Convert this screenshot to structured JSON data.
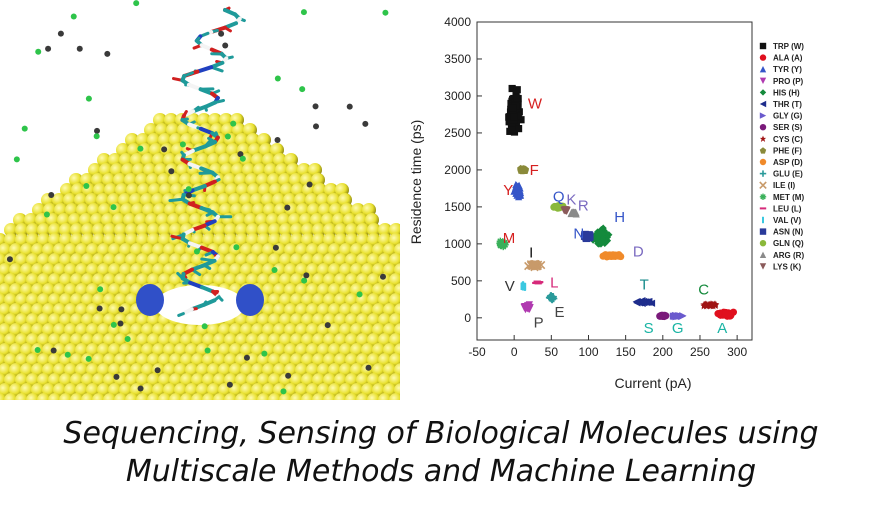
{
  "caption": {
    "line1": "Sequencing, Sensing of Biological Molecules using",
    "line2": "Multiscale Methods and Machine Learning"
  },
  "simulation": {
    "surface_color": "#e8e02e",
    "molecule_color": "#1f9a9a",
    "ion_colors": [
      "#2ec44a",
      "#3a3a3a"
    ],
    "pore_color": "#3050c8"
  },
  "chart_data": {
    "type": "scatter",
    "title": "",
    "xlabel": "Current (pA)",
    "ylabel": "Residence time (ps)",
    "xlim": [
      -50,
      320
    ],
    "ylim": [
      -300,
      4000
    ],
    "xticks": [
      -50,
      0,
      50,
      100,
      150,
      200,
      250,
      300
    ],
    "yticks": [
      0,
      500,
      1000,
      1500,
      2000,
      2500,
      3000,
      3500,
      4000
    ],
    "grid": false,
    "legend_position": "top-right",
    "series": [
      {
        "name": "TRP (W)",
        "label": "W",
        "color": "#111111",
        "marker": "square",
        "cx": 0,
        "cy": 2800,
        "sx": 10,
        "sy": 450,
        "n": 80,
        "lx": 28,
        "ly": 2900,
        "lc": "#d62020"
      },
      {
        "name": "ALA (A)",
        "label": "A",
        "color": "#e0101e",
        "marker": "circle",
        "cx": 285,
        "cy": 50,
        "sx": 12,
        "sy": 40,
        "n": 40,
        "lx": 280,
        "ly": -140,
        "lc": "#19b4a4"
      },
      {
        "name": "TYR (Y)",
        "label": "Y",
        "color": "#3555c8",
        "marker": "triangle",
        "cx": 5,
        "cy": 1730,
        "sx": 6,
        "sy": 130,
        "n": 28,
        "lx": -8,
        "ly": 1730,
        "lc": "#d62020"
      },
      {
        "name": "PRO (P)",
        "label": "P",
        "color": "#b03ab0",
        "marker": "tri-down",
        "cx": 18,
        "cy": 140,
        "sx": 5,
        "sy": 55,
        "n": 25,
        "lx": 33,
        "ly": -60,
        "lc": "#444444"
      },
      {
        "name": "HIS (H)",
        "label": "H",
        "color": "#148a3c",
        "marker": "diamond",
        "cx": 117,
        "cy": 1100,
        "sx": 15,
        "sy": 140,
        "n": 60,
        "lx": 142,
        "ly": 1360,
        "lc": "#3555c8"
      },
      {
        "name": "THR (T)",
        "label": "T",
        "color": "#1e2d8c",
        "marker": "tri-left",
        "cx": 173,
        "cy": 210,
        "sx": 14,
        "sy": 30,
        "n": 30,
        "lx": 175,
        "ly": 450,
        "lc": "#148a8a"
      },
      {
        "name": "GLY (G)",
        "label": "G",
        "color": "#6a5acd",
        "marker": "tri-right",
        "cx": 220,
        "cy": 25,
        "sx": 12,
        "sy": 15,
        "n": 25,
        "lx": 220,
        "ly": -140,
        "lc": "#19b4a4"
      },
      {
        "name": "SER (S)",
        "label": "S",
        "color": "#7a1a7a",
        "marker": "hexagon",
        "cx": 200,
        "cy": 25,
        "sx": 6,
        "sy": 15,
        "n": 15,
        "lx": 181,
        "ly": -140,
        "lc": "#19b4a4"
      },
      {
        "name": "CYS (C)",
        "label": "C",
        "color": "#a01414",
        "marker": "star",
        "cx": 262,
        "cy": 175,
        "sx": 14,
        "sy": 20,
        "n": 35,
        "lx": 255,
        "ly": 380,
        "lc": "#148a3c"
      },
      {
        "name": "PHE (F)",
        "label": "F",
        "color": "#8a8a3a",
        "marker": "pentagon",
        "cx": 12,
        "cy": 2000,
        "sx": 6,
        "sy": 35,
        "n": 18,
        "lx": 27,
        "ly": 2000,
        "lc": "#d62020"
      },
      {
        "name": "ASP (D)",
        "label": "D",
        "color": "#f08a2a",
        "marker": "circle",
        "cx": 128,
        "cy": 840,
        "sx": 18,
        "sy": 25,
        "n": 40,
        "lx": 167,
        "ly": 900,
        "lc": "#7a6ac0"
      },
      {
        "name": "GLU (E)",
        "label": "E",
        "color": "#2a9a9a",
        "marker": "plus",
        "cx": 50,
        "cy": 270,
        "sx": 4,
        "sy": 45,
        "n": 20,
        "lx": 61,
        "ly": 80,
        "lc": "#444444"
      },
      {
        "name": "ILE (I)",
        "label": "I",
        "color": "#c89a6a",
        "marker": "x",
        "cx": 28,
        "cy": 710,
        "sx": 12,
        "sy": 35,
        "n": 30,
        "lx": 23,
        "ly": 880,
        "lc": "#111111"
      },
      {
        "name": "MET (M)",
        "label": "M",
        "color": "#3ab05a",
        "marker": "asterisk",
        "cx": -16,
        "cy": 1000,
        "sx": 6,
        "sy": 50,
        "n": 25,
        "lx": -7,
        "ly": 1080,
        "lc": "#d62020"
      },
      {
        "name": "LEU (L)",
        "label": "L",
        "color": "#d62a7a",
        "marker": "dash",
        "cx": 32,
        "cy": 480,
        "sx": 5,
        "sy": 20,
        "n": 15,
        "lx": 54,
        "ly": 480,
        "lc": "#d62a7a"
      },
      {
        "name": "VAL (V)",
        "label": "V",
        "color": "#3ac8e0",
        "marker": "vline",
        "cx": 12,
        "cy": 430,
        "sx": 4,
        "sy": 25,
        "n": 15,
        "lx": -6,
        "ly": 430,
        "lc": "#333333"
      },
      {
        "name": "ASN (N)",
        "label": "N",
        "color": "#2a3a9a",
        "marker": "square",
        "cx": 98,
        "cy": 1100,
        "sx": 6,
        "sy": 45,
        "n": 25,
        "lx": 87,
        "ly": 1140,
        "lc": "#3555c8"
      },
      {
        "name": "GLN (Q)",
        "label": "Q",
        "color": "#8ab83a",
        "marker": "circle",
        "cx": 60,
        "cy": 1500,
        "sx": 9,
        "sy": 20,
        "n": 25,
        "lx": 60,
        "ly": 1640,
        "lc": "#3555c8"
      },
      {
        "name": "ARG (R)",
        "label": "R",
        "color": "#8a8a8a",
        "marker": "triangle",
        "cx": 80,
        "cy": 1420,
        "sx": 7,
        "sy": 25,
        "n": 20,
        "lx": 93,
        "ly": 1520,
        "lc": "#7a6ac0"
      },
      {
        "name": "LYS (K)",
        "label": "K",
        "color": "#8a5a5a",
        "marker": "tri-down",
        "cx": 70,
        "cy": 1450,
        "sx": 5,
        "sy": 20,
        "n": 15,
        "lx": 77,
        "ly": 1600,
        "lc": "#7a6ac0"
      }
    ]
  }
}
